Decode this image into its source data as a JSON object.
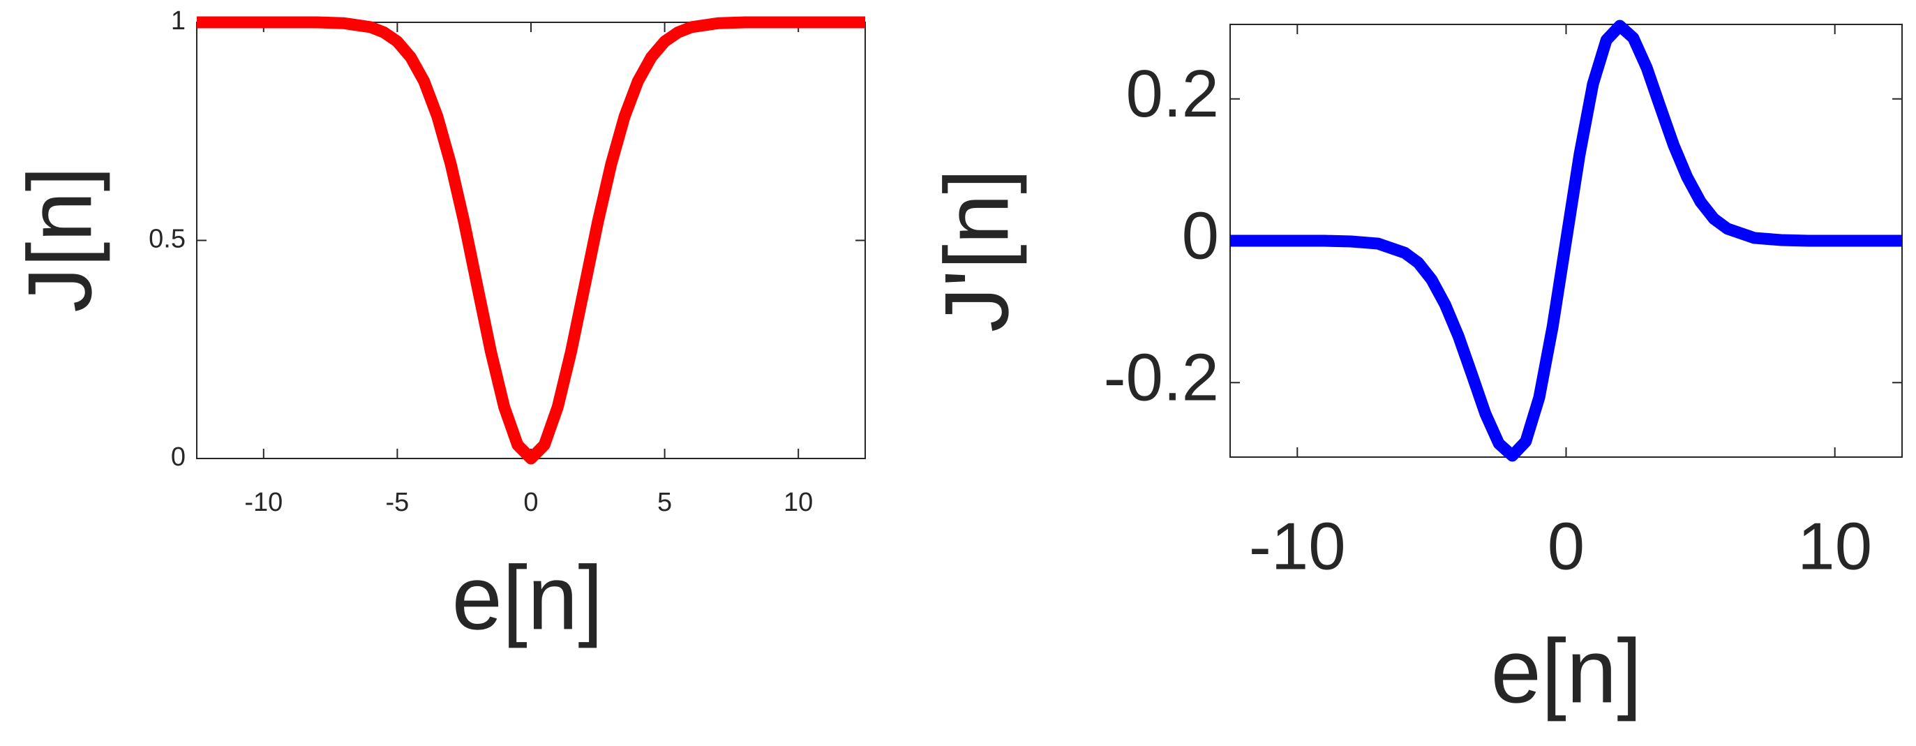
{
  "chart_data": [
    {
      "type": "line",
      "x_label": "e[n]",
      "y_label": "J[n]",
      "xlim": [
        -12.5,
        12.5
      ],
      "xticks": [
        -10,
        -5,
        0,
        5,
        10
      ],
      "ylim": [
        0,
        1
      ],
      "yticks": [
        0,
        0.5,
        1
      ],
      "series": [
        {
          "color": "#ff0000",
          "x": [
            -12.5,
            -11,
            -10,
            -9,
            -8,
            -7,
            -6,
            -5.5,
            -5,
            -4.5,
            -4,
            -3.5,
            -3,
            -2.5,
            -2,
            -1.5,
            -1,
            -0.5,
            0,
            0.5,
            1,
            1.5,
            2,
            2.5,
            3,
            3.5,
            4,
            4.5,
            5,
            5.5,
            6,
            7,
            8,
            9,
            10,
            11,
            12.5
          ],
          "values": [
            1,
            1,
            1,
            1,
            1,
            0.998,
            0.989,
            0.977,
            0.956,
            0.92,
            0.865,
            0.784,
            0.675,
            0.542,
            0.393,
            0.245,
            0.118,
            0.031,
            0,
            0.031,
            0.118,
            0.245,
            0.393,
            0.542,
            0.675,
            0.784,
            0.865,
            0.92,
            0.956,
            0.977,
            0.989,
            0.998,
            1,
            1,
            1,
            1,
            1
          ]
        }
      ]
    },
    {
      "type": "line",
      "x_label": "e[n]",
      "y_label": "J'[n]",
      "xlim": [
        -12.5,
        12.5
      ],
      "xticks": [
        -10,
        0,
        10
      ],
      "ylim": [
        -0.305,
        0.305
      ],
      "yticks": [
        -0.2,
        0,
        0.2
      ],
      "series": [
        {
          "color": "#0000ff",
          "x": [
            -12.5,
            -11,
            -10,
            -9,
            -8,
            -7,
            -6,
            -5.5,
            -5,
            -4.5,
            -4,
            -3.5,
            -3,
            -2.5,
            -2,
            -1.5,
            -1,
            -0.5,
            0,
            0.5,
            1,
            1.5,
            2,
            2.5,
            3,
            3.5,
            4,
            4.5,
            5,
            5.5,
            6,
            7,
            8,
            9,
            10,
            11,
            12.5
          ],
          "values": [
            0,
            0,
            0,
            0,
            -0.001,
            -0.004,
            -0.017,
            -0.031,
            -0.055,
            -0.09,
            -0.135,
            -0.189,
            -0.244,
            -0.286,
            -0.303,
            -0.283,
            -0.221,
            -0.121,
            0,
            0.121,
            0.221,
            0.283,
            0.303,
            0.286,
            0.244,
            0.189,
            0.135,
            0.09,
            0.055,
            0.031,
            0.017,
            0.004,
            0.001,
            0,
            0,
            0,
            0
          ]
        }
      ]
    }
  ]
}
